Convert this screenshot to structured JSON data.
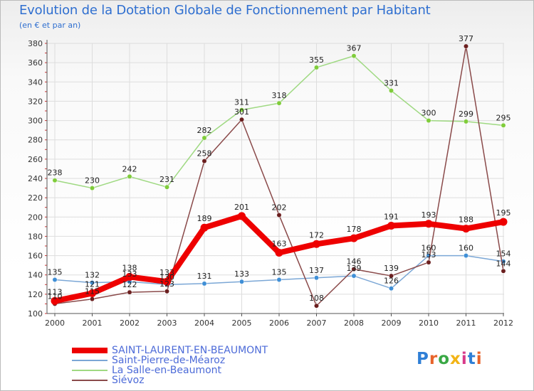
{
  "title": "Evolution de la Dotation Globale de Fonctionnement par Habitant",
  "subtitle": "(en € et par an)",
  "brand": "Proxiti",
  "colors": {
    "background": "#ffffff",
    "grid": "#dddddd",
    "title": "#2f6fd0"
  },
  "chart_data": {
    "type": "line",
    "title": "Evolution de la Dotation Globale de Fonctionnement par Habitant",
    "subtitle": "(en € et par an)",
    "xlabel": "",
    "ylabel": "",
    "ylim": [
      100,
      380
    ],
    "yticks": [
      100,
      120,
      140,
      160,
      180,
      200,
      220,
      240,
      260,
      280,
      300,
      320,
      340,
      360,
      380
    ],
    "grid": true,
    "legend_position": "bottom-left",
    "categories": [
      "2000",
      "2001",
      "2002",
      "2003",
      "2004",
      "2005",
      "2006",
      "2007",
      "2008",
      "2009",
      "2010",
      "2011",
      "2012"
    ],
    "series": [
      {
        "name": "SAINT-LAURENT-EN-BEAUMONT",
        "color": "#ee0000",
        "marker": "#ee0000",
        "emphasis": true,
        "values": [
          113,
          121,
          138,
          133,
          189,
          201,
          163,
          172,
          178,
          191,
          193,
          188,
          195
        ],
        "labels": [
          "113",
          "121",
          "138",
          "133",
          "189",
          "201",
          "163",
          "172",
          "178",
          "191",
          "193",
          "188",
          "195"
        ]
      },
      {
        "name": "Saint-Pierre-de-Méaroz",
        "color": "#7ba7d6",
        "marker": "#3f8fd6",
        "emphasis": false,
        "values": [
          135,
          132,
          133,
          130,
          131,
          133,
          135,
          137,
          139,
          126,
          160,
          160,
          154
        ],
        "labels": [
          "135",
          "132",
          "133",
          "130",
          "131",
          "133",
          "135",
          "137",
          "139",
          "126",
          "160",
          "160",
          "154"
        ]
      },
      {
        "name": "La Salle-en-Beaumont",
        "color": "#9fd982",
        "marker": "#7fcc3a",
        "emphasis": false,
        "values": [
          238,
          230,
          242,
          231,
          282,
          311,
          318,
          355,
          367,
          331,
          300,
          299,
          295
        ],
        "labels": [
          "238",
          "230",
          "242",
          "231",
          "282",
          "311",
          "318",
          "355",
          "367",
          "331",
          "300",
          "299",
          "295"
        ]
      },
      {
        "name": "Siévoz",
        "color": "#8a4a4a",
        "marker": "#6b1f1f",
        "emphasis": false,
        "values": [
          110,
          115,
          122,
          123,
          258,
          301,
          202,
          108,
          146,
          139,
          153,
          377,
          144
        ],
        "labels": [
          "110",
          "115",
          "122",
          "123",
          "258",
          "301",
          "202",
          "108",
          "146",
          "139",
          "153",
          "377",
          "144"
        ]
      }
    ]
  }
}
